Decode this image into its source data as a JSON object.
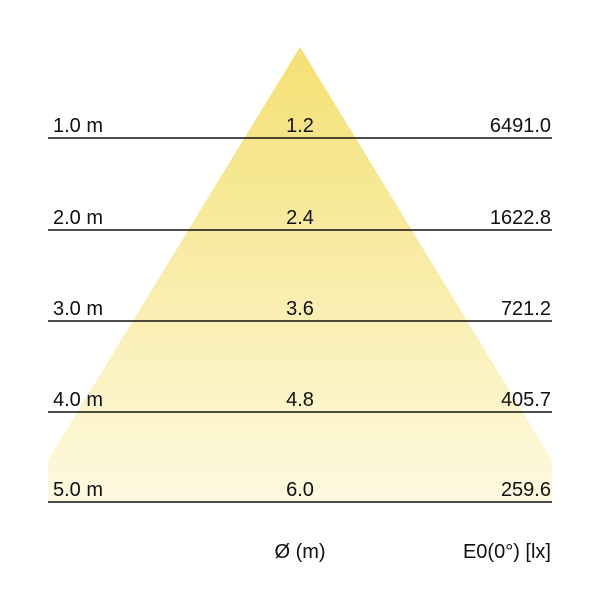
{
  "colors": {
    "cone_top": "#f4e072",
    "cone_bottom": "#fdf9e0",
    "lines": "#111111"
  },
  "rows": [
    {
      "distance": "1.0 m",
      "diameter": "1.2",
      "illuminance": "6491.0"
    },
    {
      "distance": "2.0 m",
      "diameter": "2.4",
      "illuminance": "1622.8"
    },
    {
      "distance": "3.0 m",
      "diameter": "3.6",
      "illuminance": "721.2"
    },
    {
      "distance": "4.0 m",
      "diameter": "4.8",
      "illuminance": "405.7"
    },
    {
      "distance": "5.0 m",
      "diameter": "6.0",
      "illuminance": "259.6"
    }
  ],
  "footer": {
    "diameter_label": "Ø (m)",
    "illuminance_label": "E0(0°) [lx]"
  }
}
